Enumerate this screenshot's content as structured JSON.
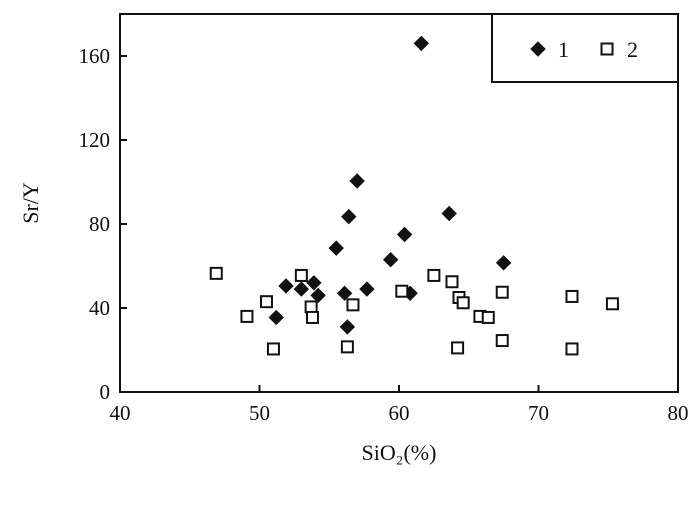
{
  "chart_data": {
    "type": "scatter",
    "title": "",
    "xlabel": "SiO₂(%)",
    "ylabel": "Sr/Y",
    "xlim": [
      40,
      80
    ],
    "ylim": [
      0,
      180
    ],
    "xticks": [
      40,
      50,
      60,
      70,
      80
    ],
    "yticks": [
      0,
      40,
      80,
      120,
      160
    ],
    "grid": false,
    "legend_position": "top-right",
    "series": [
      {
        "name": "1",
        "marker": "filled-diamond",
        "color": "#111111",
        "points": [
          [
            51.2,
            35.5
          ],
          [
            51.9,
            50.5
          ],
          [
            53.0,
            49.0
          ],
          [
            53.9,
            52.0
          ],
          [
            54.2,
            46.0
          ],
          [
            55.5,
            68.5
          ],
          [
            56.1,
            47.0
          ],
          [
            56.3,
            31.0
          ],
          [
            56.4,
            83.5
          ],
          [
            57.0,
            100.5
          ],
          [
            57.7,
            49.0
          ],
          [
            59.4,
            63.0
          ],
          [
            60.4,
            75.0
          ],
          [
            60.8,
            47.0
          ],
          [
            61.6,
            166.0
          ],
          [
            63.6,
            85.0
          ],
          [
            67.5,
            61.5
          ]
        ]
      },
      {
        "name": "2",
        "marker": "open-square",
        "color": "#111111",
        "points": [
          [
            46.9,
            56.5
          ],
          [
            49.1,
            36.0
          ],
          [
            50.5,
            43.0
          ],
          [
            51.0,
            20.5
          ],
          [
            53.0,
            55.5
          ],
          [
            53.7,
            40.5
          ],
          [
            53.8,
            35.5
          ],
          [
            56.3,
            21.5
          ],
          [
            56.7,
            41.5
          ],
          [
            60.2,
            48.0
          ],
          [
            62.5,
            55.5
          ],
          [
            63.8,
            52.5
          ],
          [
            64.2,
            21.0
          ],
          [
            64.3,
            45.0
          ],
          [
            64.6,
            42.5
          ],
          [
            65.8,
            36.0
          ],
          [
            66.4,
            35.5
          ],
          [
            67.4,
            47.5
          ],
          [
            67.4,
            24.5
          ],
          [
            72.4,
            45.5
          ],
          [
            72.4,
            20.5
          ],
          [
            75.3,
            42.0
          ]
        ]
      }
    ]
  }
}
